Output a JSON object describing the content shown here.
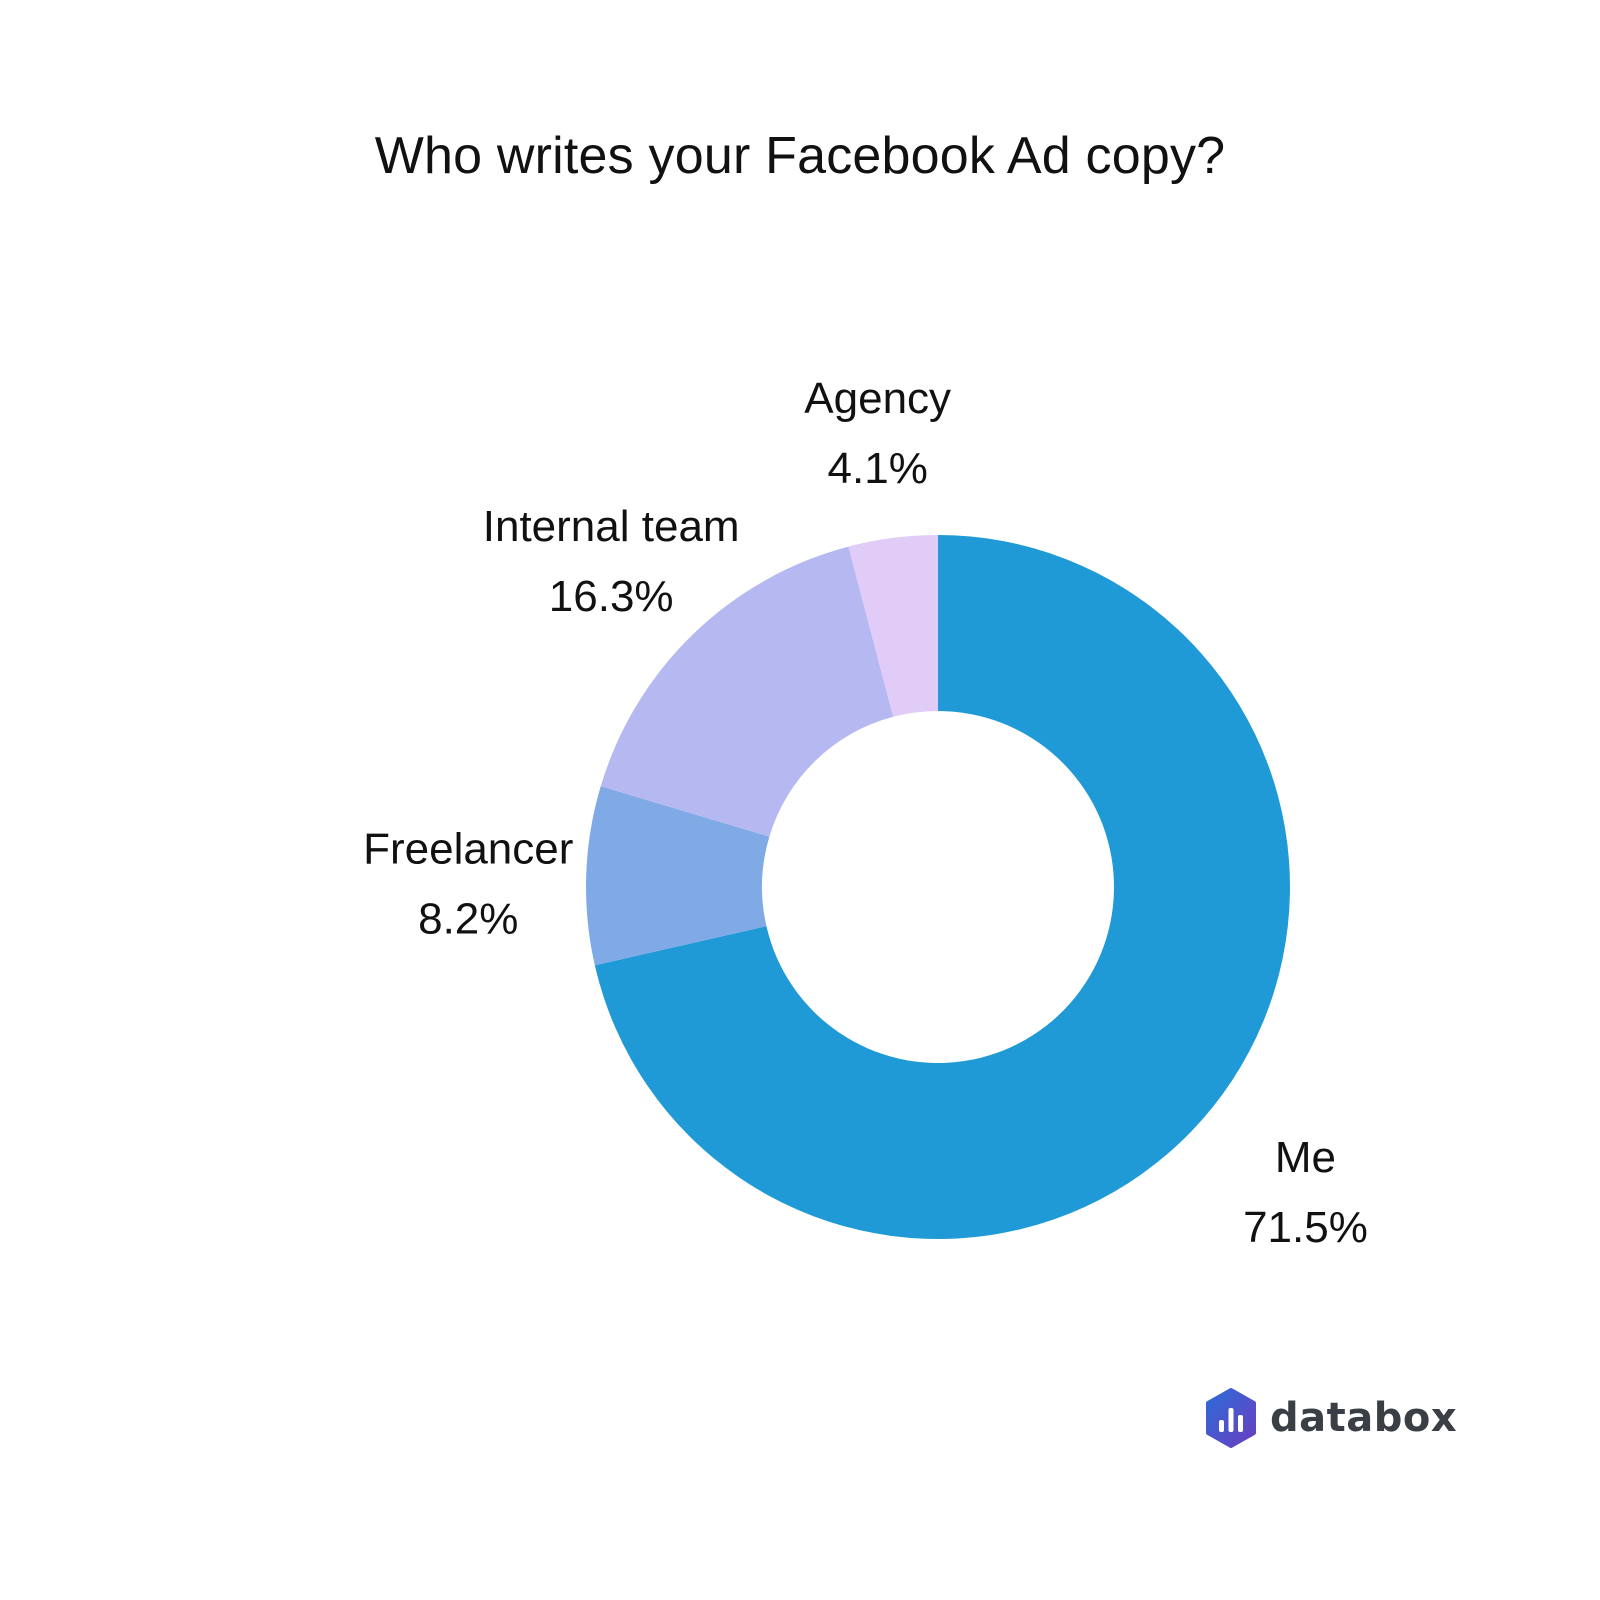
{
  "chart_data": {
    "type": "pie",
    "variant": "donut",
    "title": "Who writes your Facebook Ad copy?",
    "start": "top",
    "direction": "clockwise",
    "slices": [
      {
        "label": "Me",
        "value": 71.5,
        "value_label": "71.5%",
        "color": "#1f9ad6"
      },
      {
        "label": "Freelancer",
        "value": 8.2,
        "value_label": "8.2%",
        "color": "#7faae6"
      },
      {
        "label": "Internal team",
        "value": 16.3,
        "value_label": "16.3%",
        "color": "#b5b8f1"
      },
      {
        "label": "Agency",
        "value": 4.1,
        "value_label": "4.1%",
        "color": "#e0ccf7"
      }
    ]
  },
  "branding": {
    "logo_text": "databox",
    "logo_colors": [
      "#2d6bd8",
      "#6a3fc0"
    ]
  }
}
